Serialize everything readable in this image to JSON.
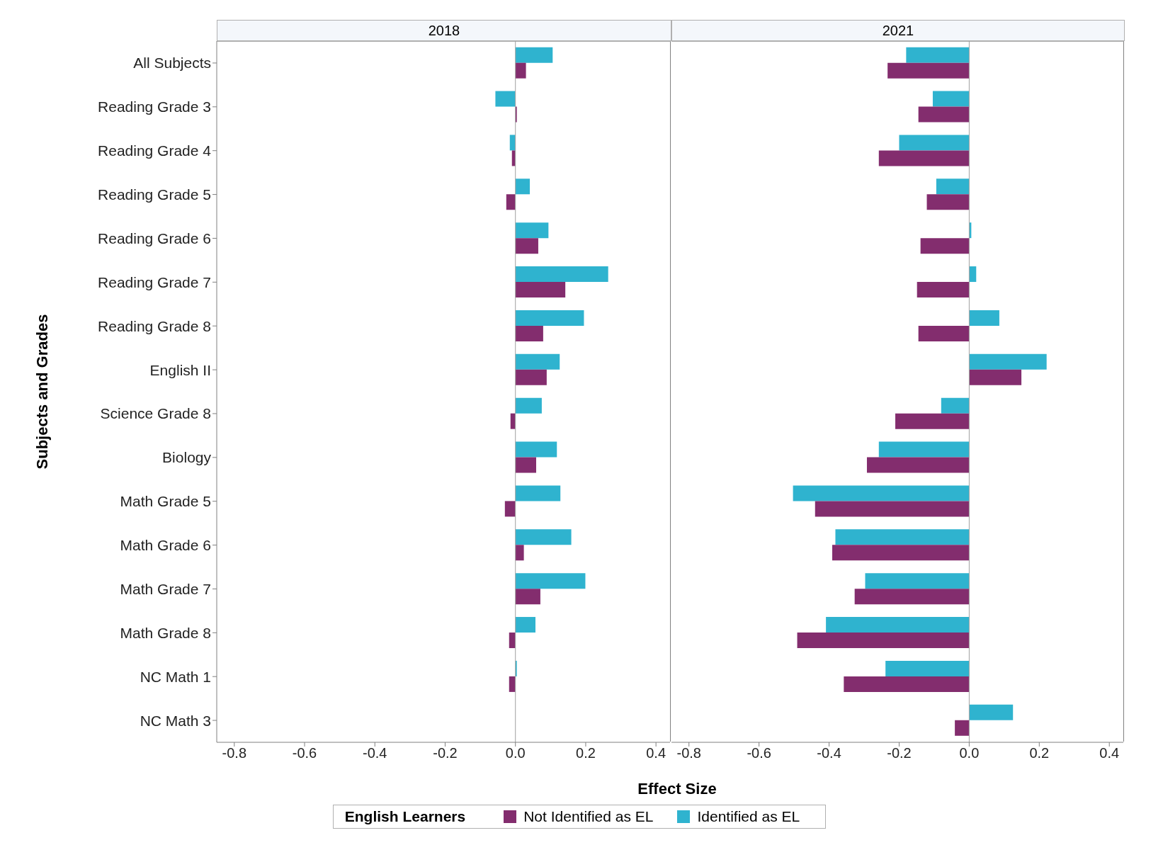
{
  "chart_data": [
    {
      "type": "bar",
      "orientation": "horizontal",
      "title": "2018",
      "ylabel": "Subjects and Grades",
      "xlabel": "Effect Size",
      "legend": "bottom",
      "legend_title": "English Learners",
      "categories": [
        "All Subjects",
        "Reading Grade 3",
        "Reading Grade 4",
        "Reading Grade 5",
        "Reading Grade 6",
        "Reading Grade 7",
        "Reading Grade 8",
        "English II",
        "Science Grade 8",
        "Biology",
        "Math Grade 5",
        "Math Grade 6",
        "Math Grade 7",
        "Math Grade 8",
        "NC Math 1",
        "NC Math 3"
      ],
      "series": [
        {
          "name": "Not Identified as EL",
          "color": "#832d6e",
          "values": [
            0.03,
            0.004,
            -0.01,
            -0.026,
            0.065,
            0.142,
            0.079,
            0.089,
            -0.014,
            0.059,
            -0.03,
            0.024,
            0.071,
            -0.018,
            -0.018,
            null
          ]
        },
        {
          "name": "Identified as EL",
          "color": "#2fb3cf",
          "values": [
            0.106,
            -0.057,
            -0.016,
            0.041,
            0.094,
            0.264,
            0.195,
            0.126,
            0.075,
            0.118,
            0.128,
            0.159,
            0.199,
            0.057,
            0.004,
            null
          ]
        }
      ],
      "xlim": [
        -0.85,
        0.44
      ],
      "xticks": [
        -0.8,
        -0.6,
        -0.4,
        -0.2,
        {
          "value": 0,
          "label": "0.0"
        },
        0.2,
        0.4
      ],
      "ref_lines": [
        {
          "axis": "x",
          "value": 0,
          "color": "#a0a0a0"
        }
      ]
    },
    {
      "type": "bar",
      "orientation": "horizontal",
      "title": "2021",
      "tick_labels": "x",
      "categories": [
        null,
        null,
        null,
        null,
        null,
        null,
        null,
        null,
        null,
        null,
        null,
        null,
        null,
        null,
        null,
        null
      ],
      "series": [
        {
          "name": "Not Identified as EL",
          "color": "#832d6e",
          "values": [
            -0.233,
            -0.145,
            -0.258,
            -0.121,
            -0.139,
            -0.149,
            -0.145,
            0.149,
            -0.211,
            -0.292,
            -0.44,
            -0.391,
            -0.327,
            -0.491,
            -0.358,
            -0.041
          ]
        },
        {
          "name": "Identified as EL",
          "color": "#2fb3cf",
          "values": [
            -0.18,
            -0.104,
            -0.2,
            -0.094,
            0.006,
            0.02,
            0.086,
            0.221,
            -0.08,
            -0.258,
            -0.503,
            -0.382,
            -0.297,
            -0.409,
            -0.239,
            0.125
          ]
        }
      ],
      "xlim": [
        -0.85,
        0.44
      ],
      "xticks": [
        -0.8,
        -0.6,
        -0.4,
        -0.2,
        {
          "value": 0,
          "label": "0.0"
        },
        0.2,
        0.4
      ],
      "ref_lines": [
        {
          "axis": "x",
          "value": 0,
          "color": "#a0a0a0"
        }
      ]
    }
  ]
}
